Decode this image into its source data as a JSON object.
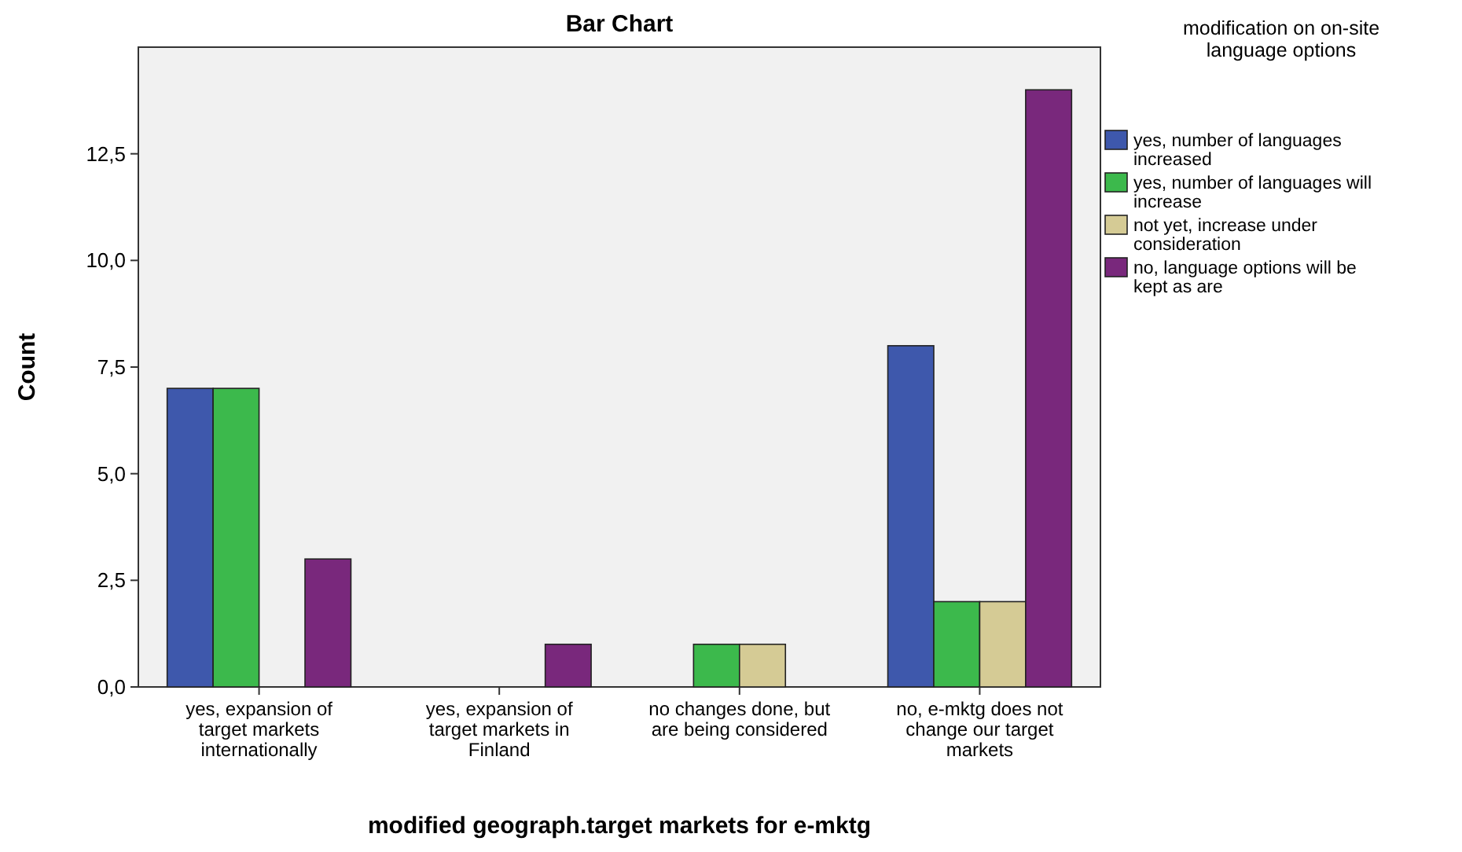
{
  "chart_data": {
    "type": "bar",
    "title": "Bar Chart",
    "xlabel": "modified geograph.target markets for e-mktg",
    "ylabel": "Count",
    "legend_title": "modification on on-site language options",
    "categories": [
      "yes, expansion of target markets internationally",
      "yes, expansion of target markets in Finland",
      "no changes done, but are being considered",
      "no, e-mktg does not change our target markets"
    ],
    "series": [
      {
        "name": "yes, number of languages increased",
        "color": "#3e58ac",
        "values": [
          7,
          null,
          null,
          8
        ]
      },
      {
        "name": "yes, number of languages will increase",
        "color": "#3cb94c",
        "values": [
          7,
          null,
          1,
          2
        ]
      },
      {
        "name": "not yet, increase under consideration",
        "color": "#d5cb95",
        "values": [
          null,
          null,
          1,
          2
        ]
      },
      {
        "name": "no, language options will be kept as are",
        "color": "#79287c",
        "values": [
          3,
          1,
          null,
          14
        ]
      }
    ],
    "ylim": [
      0,
      15
    ],
    "yticks": [
      {
        "value": 0,
        "label": "0,0"
      },
      {
        "value": 2.5,
        "label": "2,5"
      },
      {
        "value": 5,
        "label": "5,0"
      },
      {
        "value": 7.5,
        "label": "7,5"
      },
      {
        "value": 10,
        "label": "10,0"
      },
      {
        "value": 12.5,
        "label": "12,5"
      }
    ],
    "grid": false,
    "legend": "right"
  }
}
